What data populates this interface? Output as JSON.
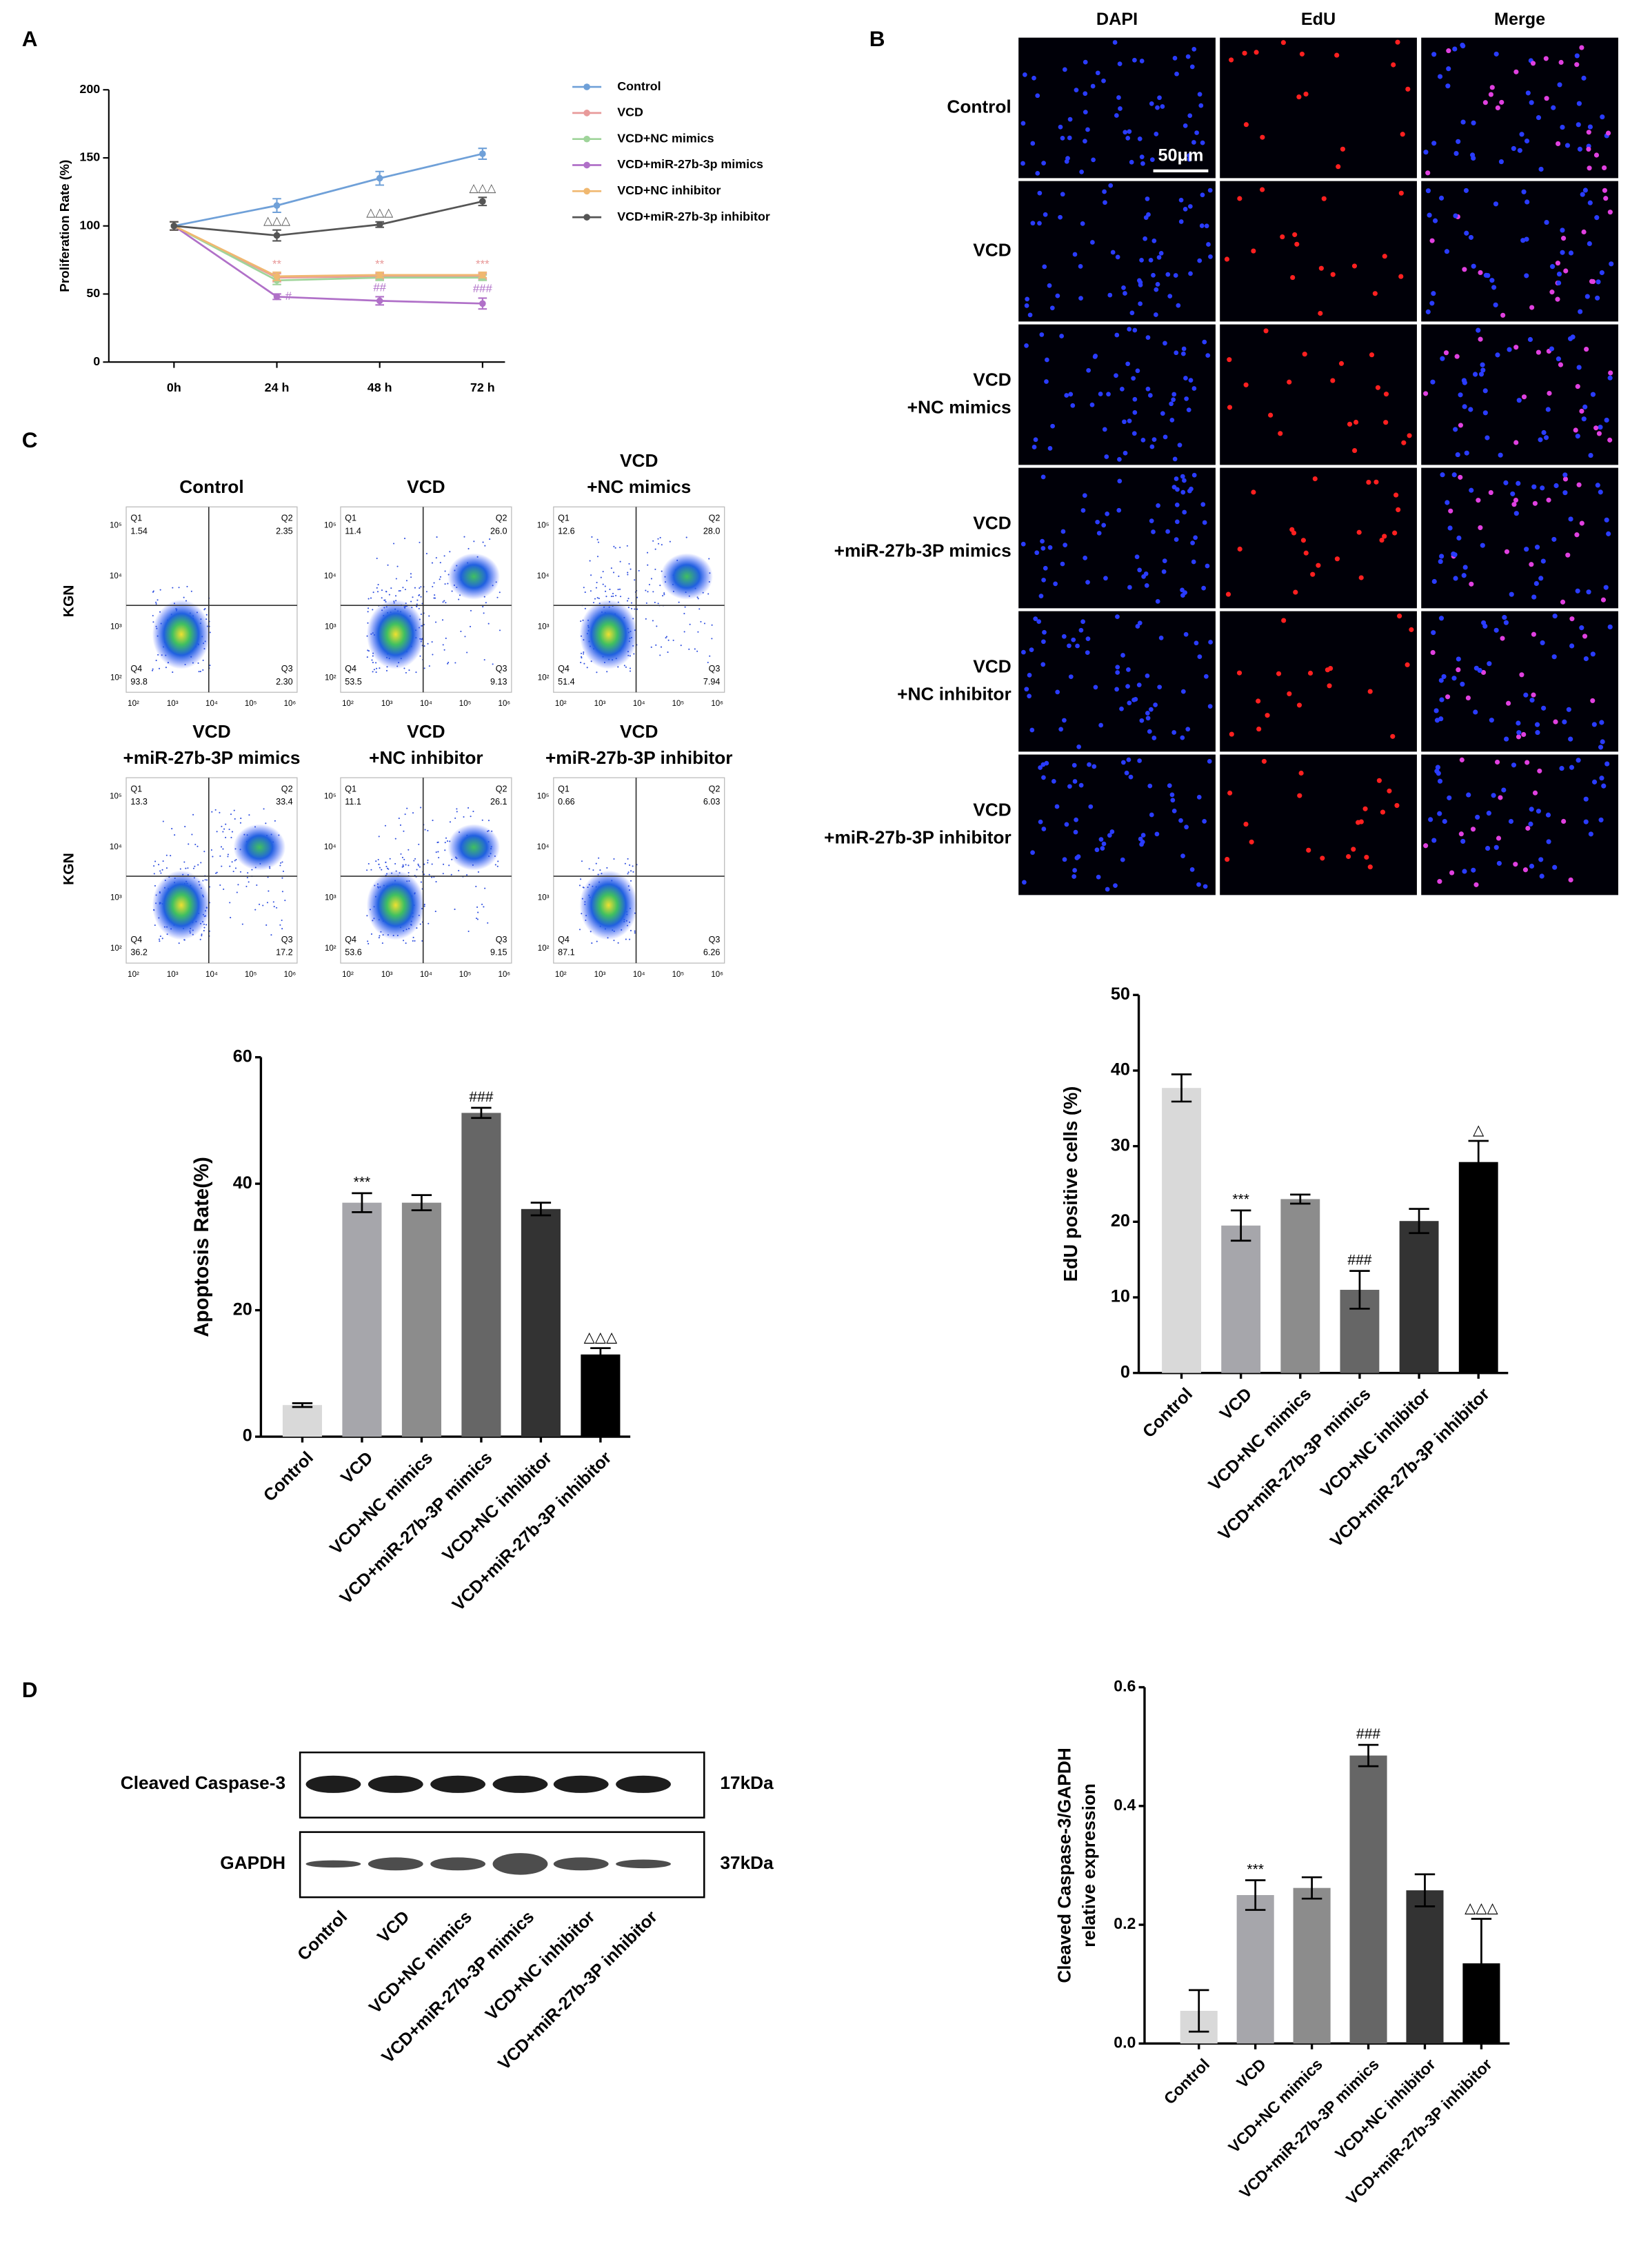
{
  "panel_labels": [
    "A",
    "B",
    "C",
    "D"
  ],
  "edu_panel": {
    "columns": [
      "DAPI",
      "EdU",
      "Merge"
    ],
    "scale_bar": "50μm",
    "rows": [
      [
        "Control"
      ],
      [
        "VCD"
      ],
      [
        "VCD",
        "+NC mimics"
      ],
      [
        "VCD",
        "+miR-27b-3P mimics"
      ],
      [
        "VCD",
        "+NC inhibitor"
      ],
      [
        "VCD",
        "+miR-27b-3P inhibitor"
      ]
    ]
  },
  "flow_panel": {
    "y_label": "KGN",
    "quadrant_names": [
      "Q1",
      "Q2",
      "Q3",
      "Q4"
    ],
    "x_tick_labels": [
      "10²",
      "10³",
      "10⁴",
      "10⁵",
      "10⁶"
    ],
    "y_tick_labels": [
      "10²",
      "10³",
      "10⁴",
      "10⁵"
    ],
    "plots": [
      {
        "title": [
          "Control"
        ],
        "quadrants": [
          "1.54",
          "2.35",
          "2.30",
          "93.8"
        ]
      },
      {
        "title": [
          "VCD"
        ],
        "quadrants": [
          "11.4",
          "26.0",
          "9.13",
          "53.5"
        ]
      },
      {
        "title": [
          "VCD",
          "+NC mimics"
        ],
        "quadrants": [
          "12.6",
          "28.0",
          "7.94",
          "51.4"
        ]
      },
      {
        "title": [
          "VCD",
          "+miR-27b-3P mimics"
        ],
        "quadrants": [
          "13.3",
          "33.4",
          "17.2",
          "36.2"
        ]
      },
      {
        "title": [
          "VCD",
          "+NC inhibitor"
        ],
        "quadrants": [
          "11.1",
          "26.1",
          "9.15",
          "53.6"
        ]
      },
      {
        "title": [
          "VCD",
          "+miR-27b-3P inhibitor"
        ],
        "quadrants": [
          "0.66",
          "6.03",
          "6.26",
          "87.1"
        ]
      }
    ]
  },
  "western_blot": {
    "bands": [
      "Cleaved Caspase-3",
      "GAPDH"
    ],
    "sizes": [
      "17kDa",
      "37kDa"
    ],
    "lanes": [
      "Control",
      "VCD",
      "VCD+NC mimics",
      "VCD+miR-27b-3P mimics",
      "VCD+NC inhibitor",
      "VCD+miR-27b-3P inhibitor"
    ]
  },
  "chart_data": [
    {
      "type": "line",
      "ylabel": "Proliferation Rate (%)",
      "categories": [
        "0h",
        "24 h",
        "48 h",
        "72 h"
      ],
      "ylim": [
        0,
        200
      ],
      "yticks": [
        0,
        50,
        100,
        150,
        200
      ],
      "series": [
        {
          "name": "Control",
          "color": "#6fa0d8",
          "values": [
            100,
            115,
            135,
            153
          ],
          "errors": [
            3,
            5,
            5,
            4
          ]
        },
        {
          "name": "VCD",
          "color": "#e89a9a",
          "values": [
            100,
            62,
            63,
            63
          ],
          "errors": [
            3,
            3,
            2,
            2
          ]
        },
        {
          "name": "VCD+NC mimics",
          "color": "#9fd49a",
          "values": [
            100,
            60,
            62,
            62
          ],
          "errors": [
            3,
            3,
            2,
            2
          ]
        },
        {
          "name": "VCD+miR-27b-3p mimics",
          "color": "#b070c8",
          "values": [
            100,
            48,
            45,
            43
          ],
          "errors": [
            3,
            2,
            3,
            4
          ]
        },
        {
          "name": "VCD+NC inhibitor",
          "color": "#f0b870",
          "values": [
            100,
            63,
            64,
            64
          ],
          "errors": [
            3,
            3,
            2,
            2
          ]
        },
        {
          "name": "VCD+miR-27b-3p inhibitor",
          "color": "#555555",
          "values": [
            100,
            93,
            101,
            118
          ],
          "errors": [
            3,
            4,
            2,
            3
          ]
        }
      ],
      "annotations": [
        {
          "series": 5,
          "index": 1,
          "side": "above",
          "text": "△△△"
        },
        {
          "series": 5,
          "index": 2,
          "side": "above",
          "text": "△△△"
        },
        {
          "series": 5,
          "index": 3,
          "side": "above",
          "text": "△△△"
        },
        {
          "series": 1,
          "index": 1,
          "side": "above",
          "text": "**"
        },
        {
          "series": 1,
          "index": 2,
          "side": "above",
          "text": "**"
        },
        {
          "series": 1,
          "index": 3,
          "side": "above",
          "text": "***"
        },
        {
          "series": 3,
          "index": 1,
          "side": "right",
          "text": "#"
        },
        {
          "series": 3,
          "index": 2,
          "side": "above",
          "text": "##"
        },
        {
          "series": 3,
          "index": 3,
          "side": "above",
          "text": "###"
        }
      ]
    },
    {
      "type": "bar",
      "ylabel": "Apoptosis Rate(%)",
      "categories": [
        "Control",
        "VCD",
        "VCD+NC mimics",
        "VCD+miR-27b-3P mimics",
        "VCD+NC inhibitor",
        "VCD+miR-27b-3P inhibitor"
      ],
      "values": [
        5,
        37,
        37,
        51.2,
        36,
        13
      ],
      "errors": [
        0.3,
        1.5,
        1.2,
        0.8,
        1,
        1
      ],
      "colors": [
        "#d9d9d9",
        "#a6a6ab",
        "#8c8c8c",
        "#666666",
        "#333333",
        "#000000"
      ],
      "ylim": [
        0,
        60
      ],
      "yticks": [
        0,
        20,
        40,
        60
      ],
      "annotations": [
        {
          "index": 1,
          "text": "***"
        },
        {
          "index": 3,
          "text": "###"
        },
        {
          "index": 5,
          "text": "△△△"
        }
      ]
    },
    {
      "type": "bar",
      "ylabel": "EdU positive cells (%)",
      "categories": [
        "Control",
        "VCD",
        "VCD+NC mimics",
        "VCD+miR-27b-3P mimics",
        "VCD+NC inhibitor",
        "VCD+miR-27b-3P inhibitor"
      ],
      "values": [
        37.7,
        19.5,
        23,
        11,
        20.1,
        27.9
      ],
      "errors": [
        1.8,
        2,
        0.6,
        2.5,
        1.6,
        2.8
      ],
      "colors": [
        "#d9d9d9",
        "#a6a6ab",
        "#8c8c8c",
        "#666666",
        "#333333",
        "#000000"
      ],
      "ylim": [
        0,
        50
      ],
      "yticks": [
        0,
        10,
        20,
        30,
        40,
        50
      ],
      "annotations": [
        {
          "index": 1,
          "text": "***"
        },
        {
          "index": 3,
          "text": "###"
        },
        {
          "index": 5,
          "text": "△"
        }
      ]
    },
    {
      "type": "bar",
      "ylabel": [
        "Cleaved Caspase-3/GAPDH",
        "relative expression"
      ],
      "categories": [
        "Control",
        "VCD",
        "VCD+NC mimics",
        "VCD+miR-27b-3P mimics",
        "VCD+NC inhibitor",
        "VCD+miR-27b-3P inhibitor"
      ],
      "values": [
        0.055,
        0.25,
        0.262,
        0.485,
        0.258,
        0.135
      ],
      "errors": [
        0.035,
        0.025,
        0.018,
        0.018,
        0.027,
        0.075
      ],
      "colors": [
        "#d9d9d9",
        "#a6a6ab",
        "#8c8c8c",
        "#666666",
        "#333333",
        "#000000"
      ],
      "ylim": [
        0,
        0.6
      ],
      "yticks": [
        {
          "value": 0,
          "label": "0.0"
        },
        0.2,
        0.4,
        0.6
      ],
      "annotations": [
        {
          "index": 1,
          "text": "***"
        },
        {
          "index": 3,
          "text": "###"
        },
        {
          "index": 5,
          "text": "△△△"
        }
      ]
    }
  ]
}
